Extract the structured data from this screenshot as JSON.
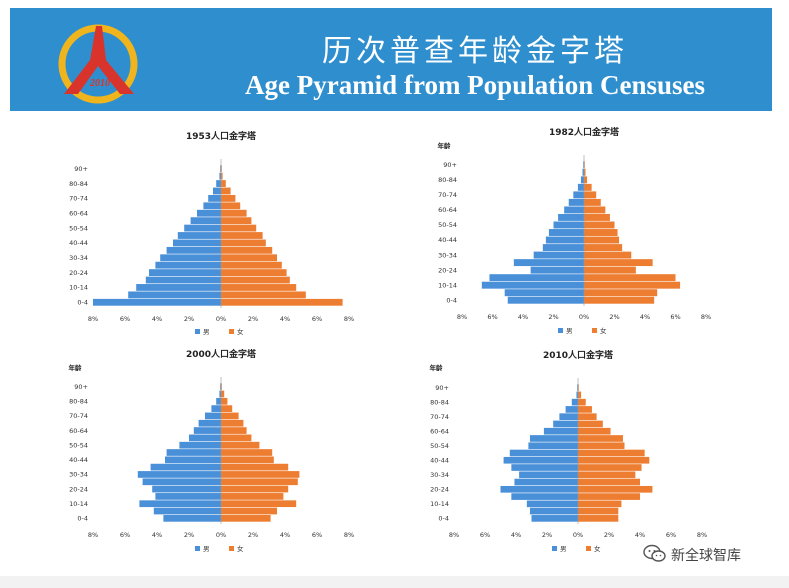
{
  "header": {
    "title_cn": "历次普查年龄金字塔",
    "title_en": "Age Pyramid from Population Censuses",
    "logo_text": "2010",
    "colors": {
      "banner": "#2f8fce",
      "logo_red": "#d9342b",
      "logo_yellow": "#f0b51c"
    }
  },
  "watermark": {
    "text": "新全球智库",
    "icon": "wechat-icon"
  },
  "chart_data": [
    {
      "type": "bar",
      "title": "1953人口金字塔",
      "age_axis_label": "",
      "age_groups": [
        "0-4",
        "5-9",
        "10-14",
        "15-19",
        "20-24",
        "25-29",
        "30-34",
        "35-39",
        "40-44",
        "45-49",
        "50-54",
        "55-59",
        "60-64",
        "65-69",
        "70-74",
        "75-79",
        "80-84",
        "85-89",
        "90+"
      ],
      "age_tick_labels": [
        "0-4",
        "",
        "10-14",
        "",
        "20-24",
        "",
        "30-34",
        "",
        "40-44",
        "",
        "50-54",
        "",
        "60-64",
        "",
        "70-74",
        "",
        "80-84",
        "",
        "90+"
      ],
      "xlim": [
        -8,
        8
      ],
      "x_ticks": [
        "8%",
        "6%",
        "4%",
        "2%",
        "0%",
        "2%",
        "4%",
        "6%",
        "8%"
      ],
      "legend": [
        "男",
        "女"
      ],
      "series": [
        {
          "name": "男",
          "color": "#4a90d9",
          "values": [
            8.0,
            5.8,
            5.3,
            4.7,
            4.5,
            4.1,
            3.8,
            3.4,
            3.0,
            2.7,
            2.3,
            1.9,
            1.5,
            1.1,
            0.8,
            0.5,
            0.3,
            0.1,
            0.05
          ]
        },
        {
          "name": "女",
          "color": "#ed7d31",
          "values": [
            7.6,
            5.3,
            4.7,
            4.3,
            4.1,
            3.8,
            3.5,
            3.2,
            2.8,
            2.6,
            2.2,
            1.9,
            1.6,
            1.2,
            0.9,
            0.6,
            0.3,
            0.1,
            0.05
          ]
        }
      ]
    },
    {
      "type": "bar",
      "title": "1982人口金字塔",
      "age_axis_label": "年龄",
      "age_groups": [
        "0-4",
        "5-9",
        "10-14",
        "15-19",
        "20-24",
        "25-29",
        "30-34",
        "35-39",
        "40-44",
        "45-49",
        "50-54",
        "55-59",
        "60-64",
        "65-69",
        "70-74",
        "75-79",
        "80-84",
        "85-89",
        "90+"
      ],
      "age_tick_labels": [
        "0-4",
        "",
        "10-14",
        "",
        "20-24",
        "",
        "30-34",
        "",
        "40-44",
        "",
        "50-54",
        "",
        "60-64",
        "",
        "70-74",
        "",
        "80-84",
        "",
        "90+"
      ],
      "xlim": [
        -8,
        8
      ],
      "x_ticks": [
        "8%",
        "6%",
        "4%",
        "2%",
        "0%",
        "2%",
        "4%",
        "6%",
        "8%"
      ],
      "legend": [
        "男",
        "女"
      ],
      "series": [
        {
          "name": "男",
          "color": "#4a90d9",
          "values": [
            5.0,
            5.2,
            6.7,
            6.2,
            3.5,
            4.6,
            3.3,
            2.7,
            2.5,
            2.3,
            2.0,
            1.7,
            1.3,
            1.0,
            0.7,
            0.4,
            0.2,
            0.1,
            0.05
          ]
        },
        {
          "name": "女",
          "color": "#ed7d31",
          "values": [
            4.6,
            4.8,
            6.3,
            6.0,
            3.4,
            4.5,
            3.1,
            2.5,
            2.3,
            2.2,
            2.0,
            1.7,
            1.4,
            1.1,
            0.8,
            0.5,
            0.2,
            0.1,
            0.05
          ]
        }
      ]
    },
    {
      "type": "bar",
      "title": "2000人口金字塔",
      "age_axis_label": "年龄",
      "age_groups": [
        "0-4",
        "5-9",
        "10-14",
        "15-19",
        "20-24",
        "25-29",
        "30-34",
        "35-39",
        "40-44",
        "45-49",
        "50-54",
        "55-59",
        "60-64",
        "65-69",
        "70-74",
        "75-79",
        "80-84",
        "85-89",
        "90+"
      ],
      "age_tick_labels": [
        "0-4",
        "",
        "10-14",
        "",
        "20-24",
        "",
        "30-34",
        "",
        "40-44",
        "",
        "50-54",
        "",
        "60-64",
        "",
        "70-74",
        "",
        "80-84",
        "",
        "90+"
      ],
      "xlim": [
        -8,
        8
      ],
      "x_ticks": [
        "8%",
        "6%",
        "4%",
        "2%",
        "0%",
        "2%",
        "4%",
        "6%",
        "8%"
      ],
      "legend": [
        "男",
        "女"
      ],
      "series": [
        {
          "name": "男",
          "color": "#4a90d9",
          "values": [
            3.6,
            4.2,
            5.1,
            4.1,
            4.3,
            4.9,
            5.2,
            4.4,
            3.5,
            3.4,
            2.6,
            2.0,
            1.7,
            1.4,
            1.0,
            0.6,
            0.3,
            0.1,
            0.05
          ]
        },
        {
          "name": "女",
          "color": "#ed7d31",
          "values": [
            3.1,
            3.5,
            4.7,
            3.9,
            4.2,
            4.8,
            4.9,
            4.2,
            3.3,
            3.2,
            2.4,
            1.9,
            1.6,
            1.4,
            1.1,
            0.7,
            0.4,
            0.2,
            0.05
          ]
        }
      ]
    },
    {
      "type": "bar",
      "title": "2010人口金字塔",
      "age_axis_label": "年龄",
      "age_groups": [
        "0-4",
        "5-9",
        "10-14",
        "15-19",
        "20-24",
        "25-29",
        "30-34",
        "35-39",
        "40-44",
        "45-49",
        "50-54",
        "55-59",
        "60-64",
        "65-69",
        "70-74",
        "75-79",
        "80-84",
        "85-89",
        "90+"
      ],
      "age_tick_labels": [
        "0-4",
        "",
        "10-14",
        "",
        "20-24",
        "",
        "30-34",
        "",
        "40-44",
        "",
        "50-54",
        "",
        "60-64",
        "",
        "70-74",
        "",
        "80-84",
        "",
        "90+"
      ],
      "xlim": [
        -8,
        8
      ],
      "x_ticks": [
        "8%",
        "6%",
        "4%",
        "2%",
        "0%",
        "2%",
        "4%",
        "6%",
        "8%"
      ],
      "legend": [
        "男",
        "女"
      ],
      "series": [
        {
          "name": "男",
          "color": "#4a90d9",
          "values": [
            3.0,
            3.1,
            3.3,
            4.3,
            5.0,
            4.1,
            3.8,
            4.3,
            4.8,
            4.4,
            3.2,
            3.1,
            2.2,
            1.6,
            1.2,
            0.8,
            0.4,
            0.1,
            0.05
          ]
        },
        {
          "name": "女",
          "color": "#ed7d31",
          "values": [
            2.6,
            2.6,
            2.8,
            4.0,
            4.8,
            4.0,
            3.7,
            4.1,
            4.6,
            4.3,
            3.0,
            2.9,
            2.1,
            1.6,
            1.2,
            0.9,
            0.5,
            0.2,
            0.05
          ]
        }
      ]
    }
  ]
}
